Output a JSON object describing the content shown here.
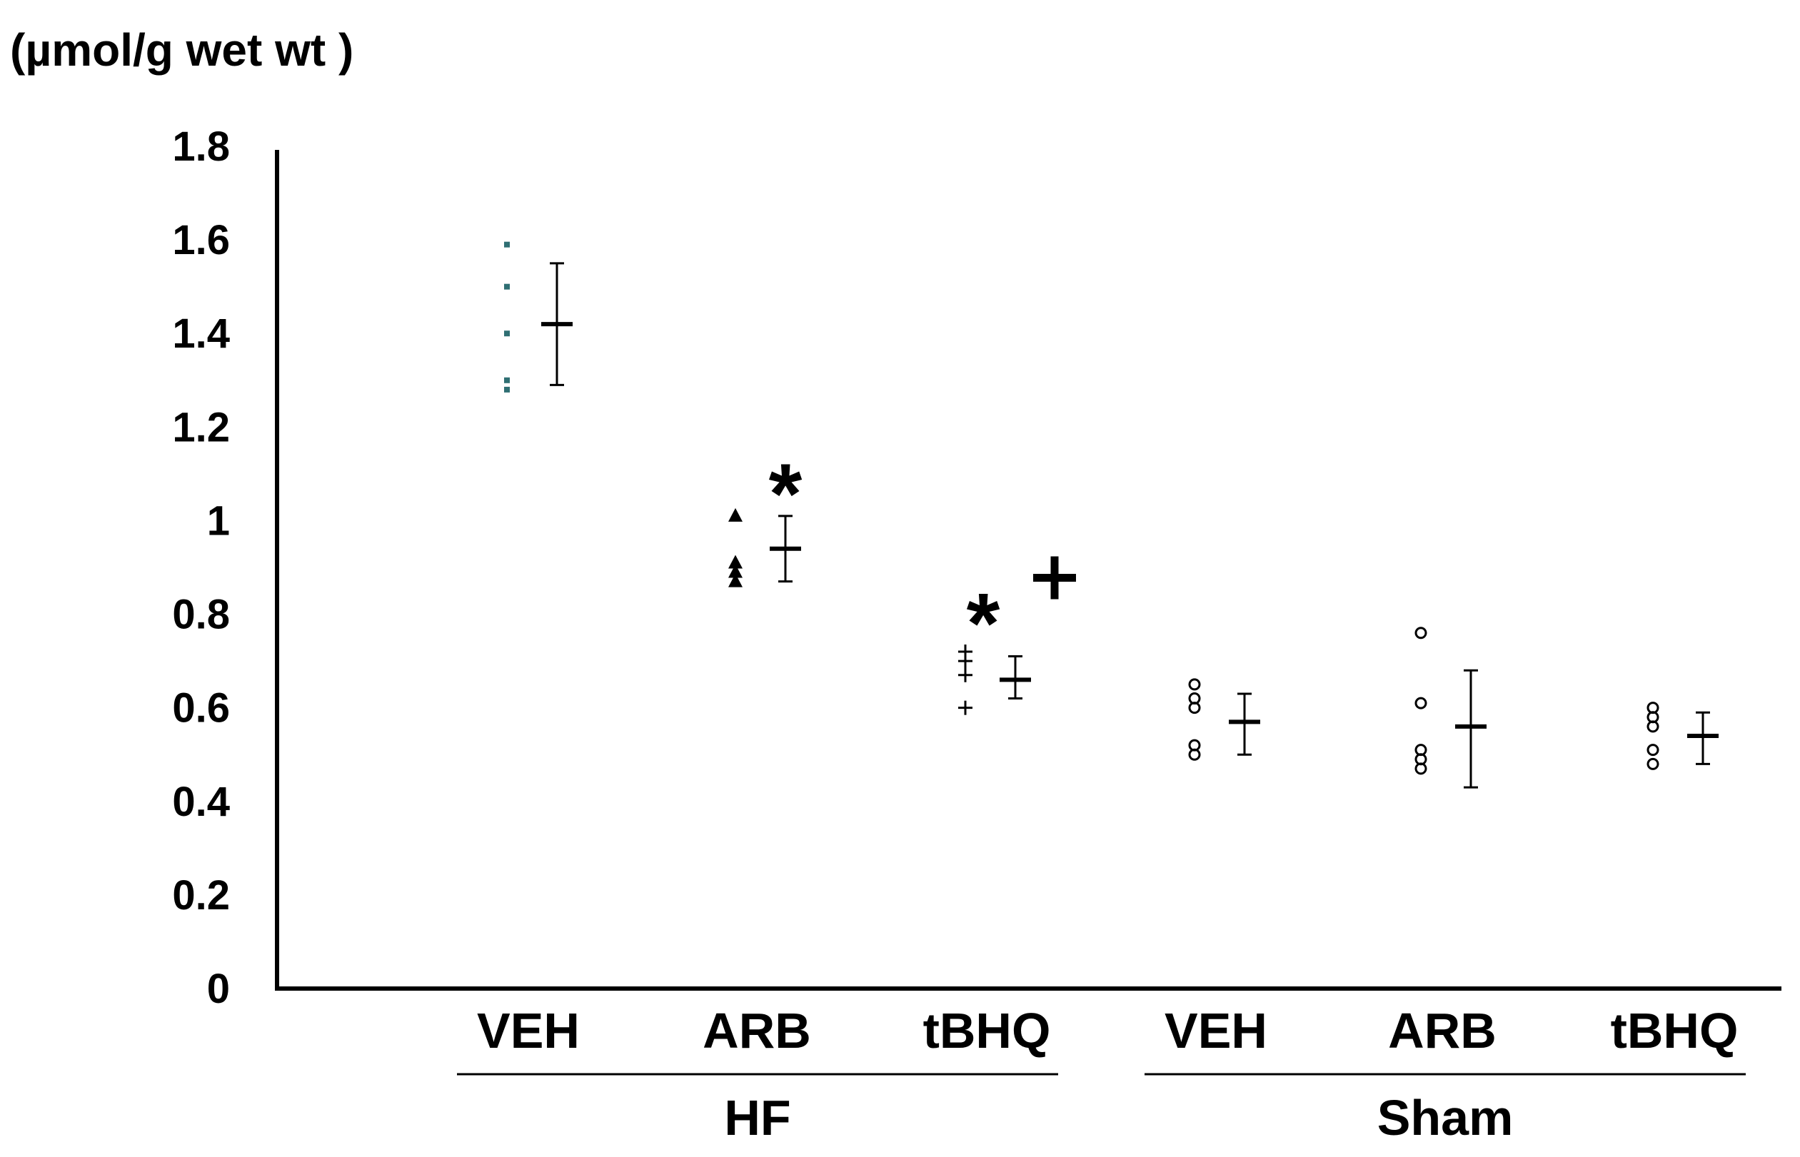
{
  "chart_data": {
    "type": "scatter",
    "ylabel": "(µmol/g wet wt )",
    "ylim": [
      0,
      1.8
    ],
    "yticks": [
      {
        "value": 0,
        "label": "0"
      },
      {
        "value": 0.2,
        "label": "0.2"
      },
      {
        "value": 0.4,
        "label": "0.4"
      },
      {
        "value": 0.6,
        "label": "0.6"
      },
      {
        "value": 0.8,
        "label": "0.8"
      },
      {
        "value": 1.0,
        "label": "1"
      },
      {
        "value": 1.2,
        "label": "1.2"
      },
      {
        "value": 1.4,
        "label": "1.4"
      },
      {
        "value": 1.6,
        "label": "1.6"
      },
      {
        "value": 1.8,
        "label": "1.8"
      }
    ],
    "grid": false,
    "groups": [
      {
        "label": "HF",
        "categories": [
          "VEH",
          "ARB",
          "tBHQ"
        ]
      },
      {
        "label": "Sham",
        "categories": [
          "VEH",
          "ARB",
          "tBHQ"
        ]
      }
    ],
    "series": [
      {
        "group": "HF",
        "category": "VEH",
        "marker": "square",
        "marker_color": "#2f6f73",
        "points": [
          1.59,
          1.5,
          1.4,
          1.3,
          1.28
        ],
        "mean": 1.42,
        "err_low": 1.29,
        "err_high": 1.55
      },
      {
        "group": "HF",
        "category": "ARB",
        "marker": "triangle",
        "marker_color": "#000000",
        "points": [
          1.01,
          0.91,
          0.89,
          0.87
        ],
        "mean": 0.94,
        "err_low": 0.87,
        "err_high": 1.01,
        "annotation": "*"
      },
      {
        "group": "HF",
        "category": "tBHQ",
        "marker": "plus",
        "marker_color": "#000000",
        "points": [
          0.72,
          0.7,
          0.67,
          0.6
        ],
        "mean": 0.66,
        "err_low": 0.62,
        "err_high": 0.71,
        "annotation": "*+"
      },
      {
        "group": "Sham",
        "category": "VEH",
        "marker": "circle",
        "marker_color": "#000000",
        "points": [
          0.65,
          0.62,
          0.6,
          0.52,
          0.5
        ],
        "mean": 0.57,
        "err_low": 0.5,
        "err_high": 0.63
      },
      {
        "group": "Sham",
        "category": "ARB",
        "marker": "circle",
        "marker_color": "#000000",
        "points": [
          0.76,
          0.61,
          0.51,
          0.49,
          0.47
        ],
        "mean": 0.56,
        "err_low": 0.43,
        "err_high": 0.68
      },
      {
        "group": "Sham",
        "category": "tBHQ",
        "marker": "circle",
        "marker_color": "#000000",
        "points": [
          0.6,
          0.58,
          0.56,
          0.51,
          0.48
        ],
        "mean": 0.54,
        "err_low": 0.48,
        "err_high": 0.59
      }
    ]
  }
}
